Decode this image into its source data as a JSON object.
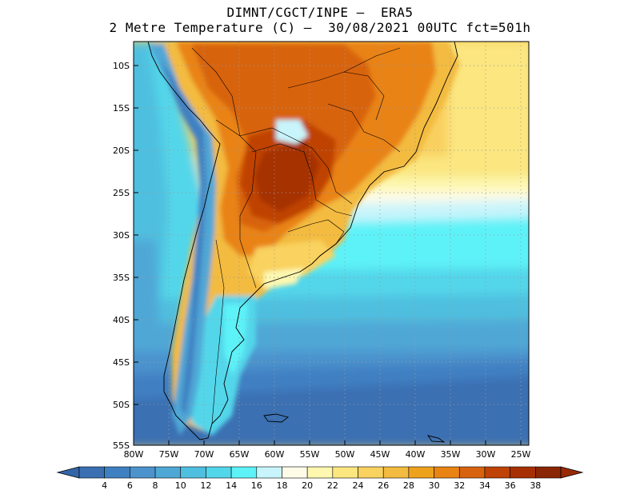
{
  "header": {
    "title_line1": "DIMNT/CGCT/INPE –  ERA5",
    "title_line2": "2 Metre Temperature (C) –  30/08/2021 00UTC fct=501h"
  },
  "map": {
    "lat_labels": [
      "10S",
      "15S",
      "20S",
      "25S",
      "30S",
      "35S",
      "40S",
      "45S",
      "50S",
      "55S"
    ],
    "lon_labels": [
      "80W",
      "75W",
      "70W",
      "65W",
      "60W",
      "55W",
      "50W",
      "45W",
      "40W",
      "35W",
      "30W",
      "25W"
    ],
    "lat_range": [
      -55,
      -7.5
    ],
    "lon_range": [
      -80,
      -24
    ]
  },
  "colorbar": {
    "labels": [
      "4",
      "6",
      "8",
      "10",
      "12",
      "14",
      "16",
      "18",
      "20",
      "22",
      "24",
      "26",
      "28",
      "30",
      "32",
      "34",
      "36",
      "38"
    ],
    "colors": [
      "#3a6fb2",
      "#3f80c2",
      "#4c93cd",
      "#4fa7d6",
      "#4fbfdf",
      "#52d6ea",
      "#5df2f8",
      "#c8f4fb",
      "#fefbe8",
      "#fdf7b0",
      "#fbe680",
      "#f9d25f",
      "#f3bb3f",
      "#eea21c",
      "#e98313",
      "#d8630f",
      "#bf4206",
      "#a63003",
      "#8a2603"
    ],
    "under_color": "#3366a8",
    "over_color": "#982a05"
  }
}
